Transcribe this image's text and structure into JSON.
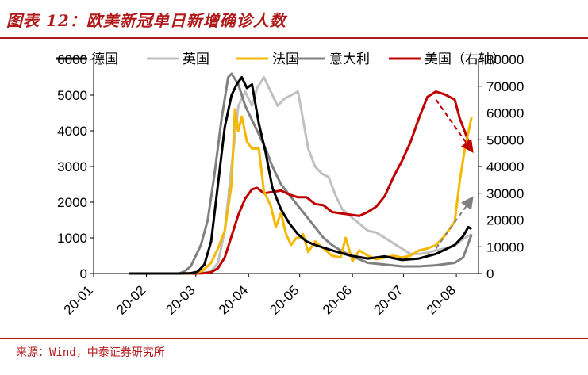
{
  "header": {
    "title": "图表 12：欧美新冠单日新增确诊人数"
  },
  "footer": {
    "source": "来源：Wind，中泰证券研究所"
  },
  "chart_data": {
    "type": "line",
    "title": "图表 12：欧美新冠单日新增确诊人数",
    "x_tick_labels": [
      "20-01",
      "20-02",
      "20-03",
      "20-04",
      "20-05",
      "20-06",
      "20-07",
      "20-08"
    ],
    "ylim_left": [
      0,
      6000
    ],
    "yticks_left": [
      0,
      1000,
      2000,
      3000,
      4000,
      5000,
      6000
    ],
    "ylim_right": [
      0,
      80000
    ],
    "yticks_right": [
      0,
      10000,
      20000,
      30000,
      40000,
      50000,
      60000,
      70000,
      80000
    ],
    "legend_position": "top",
    "grid": false,
    "series": [
      {
        "name": "德国",
        "color": "#000000",
        "axis": "left",
        "x": [
          "01-22",
          "02-20",
          "02-27",
          "03-02",
          "03-06",
          "03-10",
          "03-14",
          "03-18",
          "03-22",
          "03-25",
          "03-28",
          "03-31",
          "04-03",
          "04-07",
          "04-11",
          "04-15",
          "04-20",
          "04-25",
          "04-30",
          "05-05",
          "05-10",
          "05-20",
          "05-31",
          "06-10",
          "06-20",
          "06-30",
          "07-10",
          "07-20",
          "07-31",
          "08-05",
          "08-08",
          "08-10"
        ],
        "y": [
          0,
          0,
          10,
          50,
          250,
          900,
          2500,
          4100,
          5000,
          5300,
          5500,
          5200,
          5300,
          4200,
          3400,
          2400,
          1800,
          1400,
          1100,
          900,
          800,
          650,
          500,
          420,
          480,
          380,
          420,
          550,
          800,
          1050,
          1300,
          1250
        ]
      },
      {
        "name": "英国",
        "color": "#c0c0c0",
        "axis": "left",
        "x": [
          "01-22",
          "02-25",
          "03-01",
          "03-05",
          "03-10",
          "03-14",
          "03-18",
          "03-22",
          "03-26",
          "03-30",
          "04-03",
          "04-06",
          "04-10",
          "04-14",
          "04-18",
          "04-22",
          "04-26",
          "04-30",
          "05-03",
          "05-06",
          "05-10",
          "05-14",
          "05-18",
          "05-22",
          "05-26",
          "05-31",
          "06-05",
          "06-10",
          "06-15",
          "06-20",
          "06-25",
          "06-30",
          "07-05",
          "07-10",
          "07-15",
          "07-20",
          "07-25",
          "07-31",
          "08-03",
          "08-06",
          "08-10"
        ],
        "y": [
          0,
          0,
          5,
          20,
          60,
          300,
          1200,
          3000,
          4700,
          5100,
          4700,
          5200,
          5500,
          5100,
          4700,
          4900,
          5000,
          5100,
          4300,
          3500,
          3000,
          2800,
          2700,
          2200,
          1800,
          1600,
          1400,
          1200,
          1150,
          1000,
          850,
          700,
          550,
          550,
          580,
          650,
          700,
          780,
          900,
          1000,
          1100
        ]
      },
      {
        "name": "法国",
        "color": "#f5b800",
        "axis": "left",
        "x": [
          "01-22",
          "02-25",
          "03-01",
          "03-05",
          "03-10",
          "03-14",
          "03-18",
          "03-22",
          "03-24",
          "03-26",
          "03-28",
          "03-31",
          "04-03",
          "04-07",
          "04-10",
          "04-14",
          "04-17",
          "04-20",
          "04-23",
          "04-26",
          "04-29",
          "05-01",
          "05-03",
          "05-06",
          "05-10",
          "05-15",
          "05-20",
          "05-25",
          "05-28",
          "06-01",
          "06-05",
          "06-10",
          "06-15",
          "06-20",
          "06-25",
          "06-30",
          "07-05",
          "07-10",
          "07-15",
          "07-20",
          "07-25",
          "07-31",
          "08-03",
          "08-06",
          "08-10"
        ],
        "y": [
          0,
          0,
          20,
          80,
          300,
          700,
          1200,
          2500,
          4600,
          4000,
          4400,
          3700,
          3500,
          3500,
          2300,
          1900,
          1300,
          1700,
          1100,
          800,
          1000,
          1000,
          1100,
          600,
          900,
          700,
          500,
          450,
          1000,
          350,
          650,
          500,
          400,
          450,
          500,
          450,
          500,
          650,
          700,
          800,
          1050,
          1450,
          2600,
          3500,
          4400
        ]
      },
      {
        "name": "意大利",
        "color": "#808080",
        "axis": "left",
        "x": [
          "01-22",
          "02-20",
          "02-23",
          "02-27",
          "03-01",
          "03-04",
          "03-08",
          "03-12",
          "03-16",
          "03-20",
          "03-22",
          "03-26",
          "03-30",
          "04-03",
          "04-07",
          "04-11",
          "04-15",
          "04-20",
          "04-25",
          "04-30",
          "05-05",
          "05-10",
          "05-15",
          "05-20",
          "05-25",
          "05-31",
          "06-05",
          "06-10",
          "06-20",
          "06-30",
          "07-10",
          "07-20",
          "07-31",
          "08-05",
          "08-10"
        ],
        "y": [
          0,
          0,
          50,
          200,
          500,
          800,
          1500,
          2800,
          4300,
          5500,
          5600,
          5300,
          4700,
          4300,
          3900,
          3500,
          3000,
          2500,
          2200,
          1900,
          1600,
          1300,
          1000,
          800,
          650,
          500,
          400,
          300,
          250,
          200,
          200,
          230,
          300,
          450,
          1100
        ]
      },
      {
        "name": "美国（右轴）",
        "color": "#c00000",
        "axis": "right",
        "x": [
          "01-22",
          "02-25",
          "03-01",
          "03-05",
          "03-10",
          "03-14",
          "03-18",
          "03-22",
          "03-26",
          "03-30",
          "04-03",
          "04-06",
          "04-10",
          "04-15",
          "04-20",
          "04-25",
          "04-30",
          "05-05",
          "05-10",
          "05-15",
          "05-20",
          "05-25",
          "05-31",
          "06-05",
          "06-10",
          "06-15",
          "06-20",
          "06-25",
          "06-30",
          "07-05",
          "07-10",
          "07-15",
          "07-20",
          "07-25",
          "07-31",
          "08-03",
          "08-06",
          "08-10"
        ],
        "y": [
          0,
          0,
          0,
          50,
          500,
          2000,
          6000,
          14000,
          22000,
          28000,
          31500,
          32000,
          30000,
          30500,
          31000,
          29500,
          28500,
          28500,
          26000,
          25500,
          23000,
          22500,
          22000,
          21500,
          23000,
          25000,
          29000,
          36000,
          42000,
          49000,
          58000,
          66000,
          68000,
          67000,
          65000,
          58000,
          53000,
          46000
        ]
      }
    ],
    "annotations": [
      {
        "type": "dashed-arrow",
        "color": "#c00000",
        "axis": "right",
        "from": {
          "x": "07-20",
          "y": 65000
        },
        "to": {
          "x": "08-10",
          "y": 46000
        }
      },
      {
        "type": "dashed-arrow",
        "color": "#808080",
        "axis": "left",
        "from": {
          "x": "07-20",
          "y": 700
        },
        "to": {
          "x": "08-10",
          "y": 2100
        }
      }
    ]
  }
}
